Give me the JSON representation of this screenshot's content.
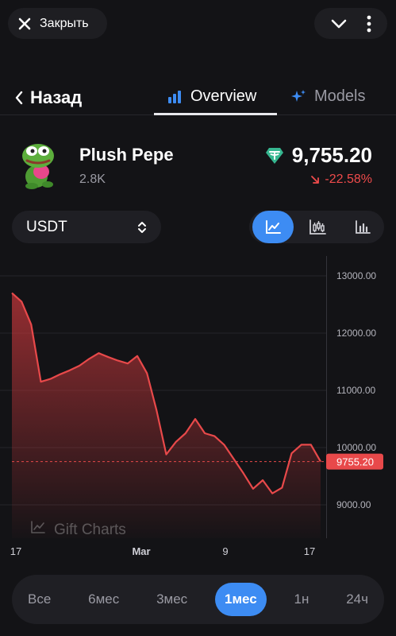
{
  "topbar": {
    "close_label": "Закрыть"
  },
  "nav": {
    "back_label": "Назад",
    "tabs": [
      {
        "label": "Overview"
      },
      {
        "label": "Models"
      }
    ]
  },
  "token": {
    "name": "Plush Pepe",
    "supply": "2.8K",
    "price": "9,755.20",
    "change": "-22.58%",
    "change_color": "#ef4b4b"
  },
  "controls": {
    "currency": "USDT"
  },
  "range": {
    "items": [
      "Все",
      "6мес",
      "3мес",
      "1мес",
      "1н",
      "24ч"
    ],
    "selected": "1мес"
  },
  "colors": {
    "accent": "#3d8cf3",
    "line": "#e8494a",
    "price_tag": "#e8494a"
  },
  "chart_data": {
    "type": "area",
    "y_ticks": [
      "13000.00",
      "12000.00",
      "11000.00",
      "10000.00",
      "9000.00"
    ],
    "ylim": [
      8500,
      13350
    ],
    "x_ticks": [
      "17",
      "Mar",
      "9",
      "17"
    ],
    "current_value_label": "9755.20",
    "current_value": 9755.2,
    "watermark": "Gift Charts",
    "points": [
      12700,
      12550,
      12150,
      11150,
      11200,
      11280,
      11350,
      11430,
      11550,
      11650,
      11580,
      11520,
      11470,
      11600,
      11300,
      10650,
      9880,
      10100,
      10250,
      10500,
      10250,
      10200,
      10050,
      9800,
      9550,
      9280,
      9430,
      9200,
      9300,
      9900,
      10050,
      10050,
      9755
    ]
  }
}
